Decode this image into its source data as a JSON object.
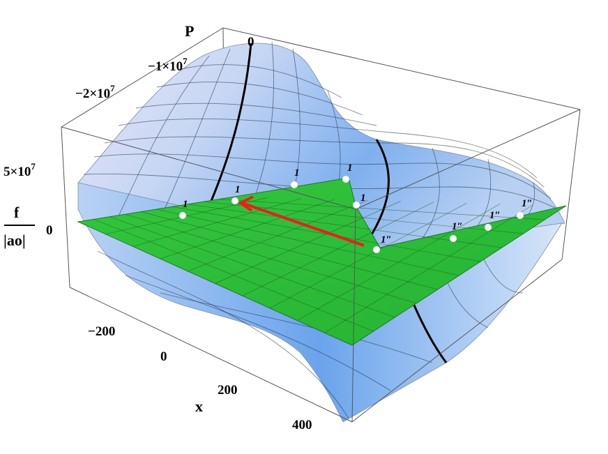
{
  "chart_data": {
    "type": "surface3d",
    "title": "",
    "xlabel": "x",
    "ylabel": "P",
    "zlabel_numerator": "f",
    "zlabel_denominator": "|ao|",
    "x_ticks": [
      "−200",
      "0",
      "200",
      "400"
    ],
    "p_ticks": [
      "−2×10",
      "−1×10",
      "0"
    ],
    "p_tick_exponent": "7",
    "z_ticks": [
      "5×10",
      "0"
    ],
    "z_tick_exponent": "7",
    "xlim": [
      -300,
      450
    ],
    "plim": [
      -25000000,
      5000000
    ],
    "surfaces": [
      {
        "kind": "curved",
        "color": "#8fb8f0"
      },
      {
        "kind": "plane",
        "color": "#2ec23a"
      }
    ],
    "points": [
      {
        "label": "1",
        "x": 40,
        "p": -22000000
      },
      {
        "label": "1",
        "x": 150,
        "p": -16000000
      },
      {
        "label": "1",
        "x": 175,
        "p": -9000000
      },
      {
        "label": "1",
        "x": 200,
        "p": -4000000
      },
      {
        "label": "1",
        "x": 300,
        "p": -6000000
      },
      {
        "label": "1″",
        "x": 420,
        "p": -12000000
      },
      {
        "label": "1″",
        "x": 360,
        "p": -2000000
      },
      {
        "label": "1″",
        "x": 330,
        "p": 1000000
      },
      {
        "label": "1″",
        "x": 310,
        "p": 4000000
      }
    ],
    "arrow": {
      "from_index": 5,
      "to_index": 1,
      "color": "#ee1c1c"
    },
    "colors": {
      "plane": "#2ec23a",
      "surface_light": "#e8e6f8",
      "surface_dark": "#5b9ae8",
      "arrow": "#ee1c1c"
    }
  }
}
